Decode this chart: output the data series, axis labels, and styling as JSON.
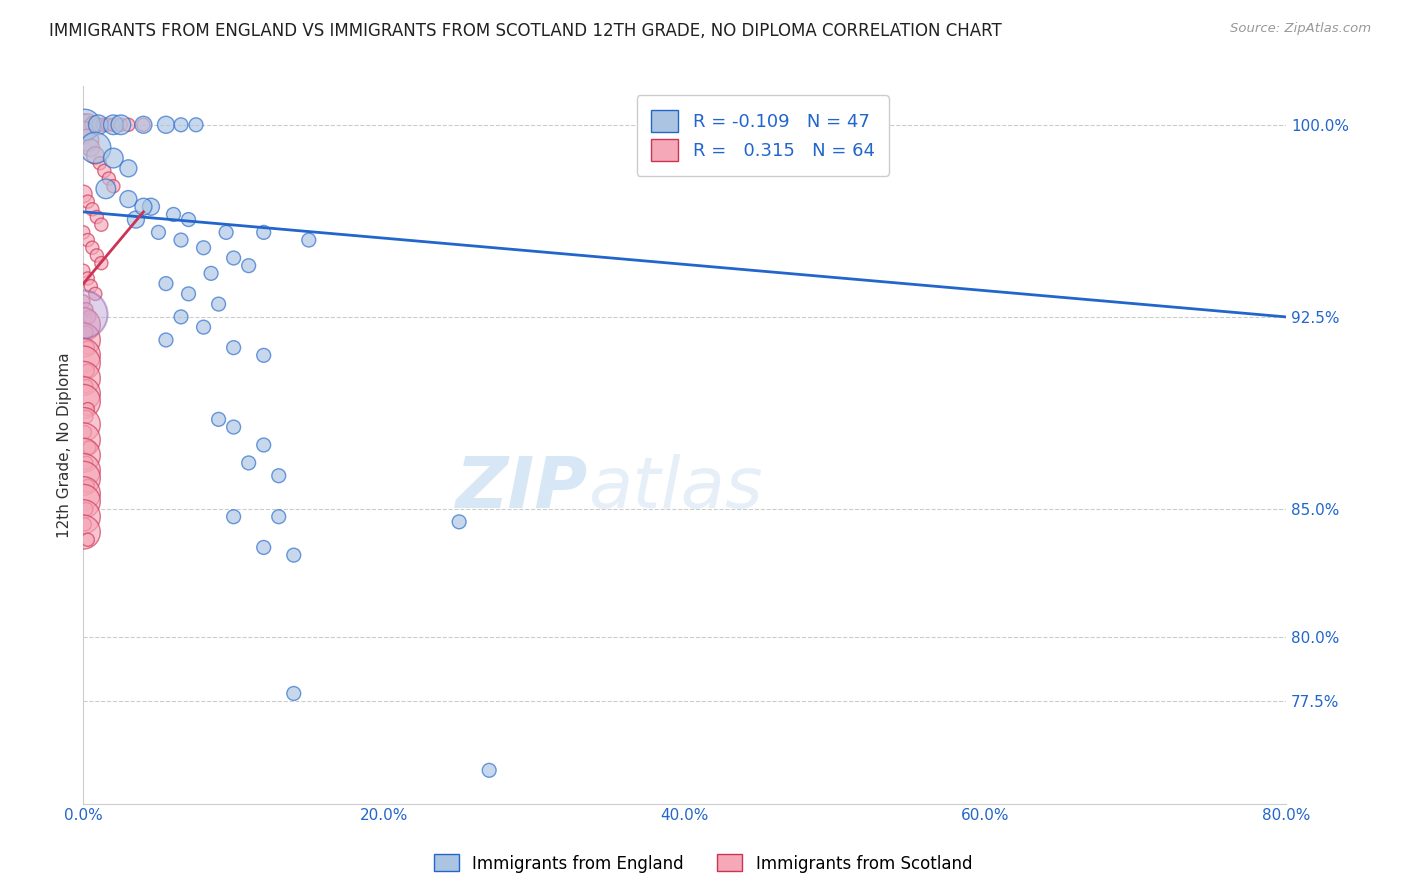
{
  "title": "IMMIGRANTS FROM ENGLAND VS IMMIGRANTS FROM SCOTLAND 12TH GRADE, NO DIPLOMA CORRELATION CHART",
  "source": "Source: ZipAtlas.com",
  "ylabel_label": "12th Grade, No Diploma",
  "xmin": 0.0,
  "xmax": 0.8,
  "ymin": 0.735,
  "ymax": 1.015,
  "england_R": -0.109,
  "england_N": 47,
  "scotland_R": 0.315,
  "scotland_N": 64,
  "england_color": "#aac4e2",
  "scotland_color": "#f5a8b8",
  "england_line_color": "#2266cc",
  "scotland_line_color": "#cc3355",
  "legend_england_label": "Immigrants from England",
  "legend_scotland_label": "Immigrants from Scotland",
  "england_scatter": [
    [
      0.001,
      1.0
    ],
    [
      0.01,
      1.0
    ],
    [
      0.02,
      1.0
    ],
    [
      0.025,
      1.0
    ],
    [
      0.04,
      1.0
    ],
    [
      0.055,
      1.0
    ],
    [
      0.065,
      1.0
    ],
    [
      0.075,
      1.0
    ],
    [
      0.008,
      0.991
    ],
    [
      0.02,
      0.987
    ],
    [
      0.03,
      0.983
    ],
    [
      0.015,
      0.975
    ],
    [
      0.03,
      0.971
    ],
    [
      0.045,
      0.968
    ],
    [
      0.06,
      0.965
    ],
    [
      0.07,
      0.963
    ],
    [
      0.05,
      0.958
    ],
    [
      0.065,
      0.955
    ],
    [
      0.08,
      0.952
    ],
    [
      0.035,
      0.963
    ],
    [
      0.1,
      0.948
    ],
    [
      0.11,
      0.945
    ],
    [
      0.085,
      0.942
    ],
    [
      0.095,
      0.958
    ],
    [
      0.12,
      0.958
    ],
    [
      0.055,
      0.938
    ],
    [
      0.07,
      0.934
    ],
    [
      0.09,
      0.93
    ],
    [
      0.04,
      0.968
    ],
    [
      0.15,
      0.955
    ],
    [
      0.065,
      0.925
    ],
    [
      0.08,
      0.921
    ],
    [
      0.055,
      0.916
    ],
    [
      0.1,
      0.913
    ],
    [
      0.12,
      0.91
    ],
    [
      0.09,
      0.885
    ],
    [
      0.1,
      0.882
    ],
    [
      0.12,
      0.875
    ],
    [
      0.11,
      0.868
    ],
    [
      0.13,
      0.863
    ],
    [
      0.1,
      0.847
    ],
    [
      0.13,
      0.847
    ],
    [
      0.12,
      0.835
    ],
    [
      0.14,
      0.832
    ],
    [
      0.25,
      0.845
    ],
    [
      0.14,
      0.778
    ],
    [
      0.27,
      0.748
    ]
  ],
  "scotland_scatter": [
    [
      0.0,
      1.0
    ],
    [
      0.003,
      1.0
    ],
    [
      0.007,
      1.0
    ],
    [
      0.01,
      1.0
    ],
    [
      0.013,
      1.0
    ],
    [
      0.016,
      1.0
    ],
    [
      0.02,
      1.0
    ],
    [
      0.025,
      1.0
    ],
    [
      0.03,
      1.0
    ],
    [
      0.04,
      1.0
    ],
    [
      0.0,
      0.997
    ],
    [
      0.003,
      0.994
    ],
    [
      0.005,
      0.991
    ],
    [
      0.008,
      0.988
    ],
    [
      0.011,
      0.985
    ],
    [
      0.014,
      0.982
    ],
    [
      0.017,
      0.979
    ],
    [
      0.02,
      0.976
    ],
    [
      0.0,
      0.973
    ],
    [
      0.003,
      0.97
    ],
    [
      0.006,
      0.967
    ],
    [
      0.009,
      0.964
    ],
    [
      0.012,
      0.961
    ],
    [
      0.0,
      0.958
    ],
    [
      0.003,
      0.955
    ],
    [
      0.006,
      0.952
    ],
    [
      0.009,
      0.949
    ],
    [
      0.012,
      0.946
    ],
    [
      0.0,
      0.943
    ],
    [
      0.003,
      0.94
    ],
    [
      0.005,
      0.937
    ],
    [
      0.008,
      0.934
    ],
    [
      0.0,
      0.931
    ],
    [
      0.002,
      0.928
    ],
    [
      0.004,
      0.925
    ],
    [
      0.0,
      0.922
    ],
    [
      0.002,
      0.919
    ],
    [
      0.0,
      0.916
    ],
    [
      0.003,
      0.913
    ],
    [
      0.0,
      0.91
    ],
    [
      0.0,
      0.907
    ],
    [
      0.003,
      0.904
    ],
    [
      0.0,
      0.901
    ],
    [
      0.002,
      0.898
    ],
    [
      0.0,
      0.895
    ],
    [
      0.0,
      0.892
    ],
    [
      0.003,
      0.889
    ],
    [
      0.002,
      0.886
    ],
    [
      0.0,
      0.883
    ],
    [
      0.001,
      0.88
    ],
    [
      0.0,
      0.877
    ],
    [
      0.004,
      0.874
    ],
    [
      0.0,
      0.871
    ],
    [
      0.002,
      0.868
    ],
    [
      0.0,
      0.865
    ],
    [
      0.0,
      0.862
    ],
    [
      0.003,
      0.859
    ],
    [
      0.0,
      0.856
    ],
    [
      0.0,
      0.853
    ],
    [
      0.002,
      0.85
    ],
    [
      0.0,
      0.847
    ],
    [
      0.001,
      0.844
    ],
    [
      0.0,
      0.841
    ],
    [
      0.003,
      0.838
    ]
  ],
  "scotland_scatter_large": [
    [
      0.0,
      0.926
    ]
  ],
  "england_trendline": [
    [
      0.0,
      0.966
    ],
    [
      0.8,
      0.925
    ]
  ],
  "scotland_trendline": [
    [
      0.0,
      0.938
    ],
    [
      0.04,
      0.966
    ]
  ],
  "x_ticks": [
    0.0,
    0.2,
    0.4,
    0.6,
    0.8
  ],
  "x_tick_labels": [
    "0.0%",
    "20.0%",
    "40.0%",
    "60.0%",
    "80.0%"
  ],
  "y_ticks": [
    0.775,
    0.8,
    0.85,
    0.925,
    1.0
  ],
  "y_tick_labels": [
    "77.5%",
    "80.0%",
    "85.0%",
    "92.5%",
    "100.0%"
  ]
}
